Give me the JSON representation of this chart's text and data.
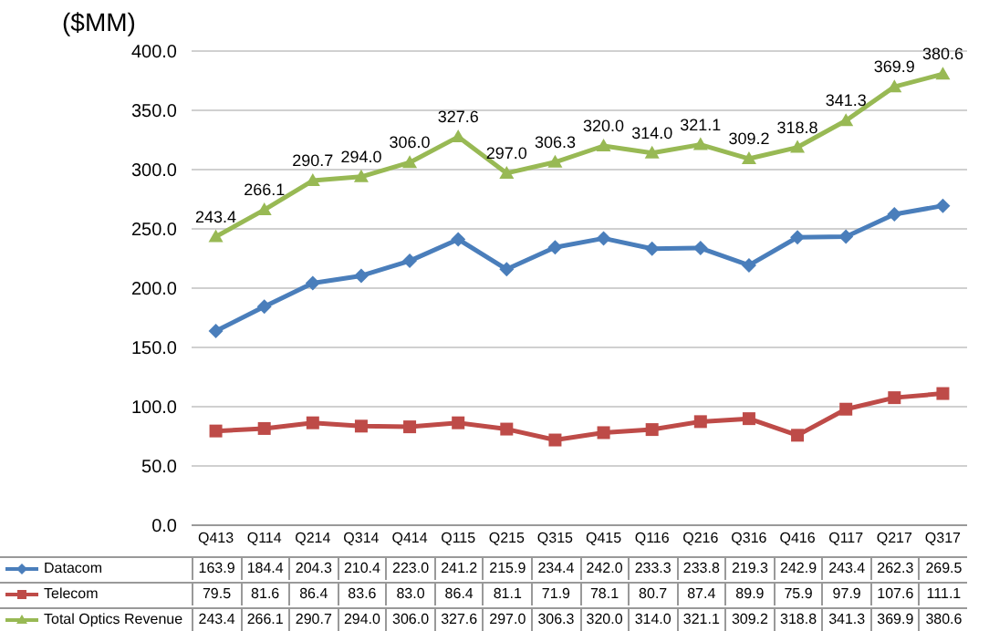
{
  "chart_data": {
    "type": "line",
    "ylabel": "($MM)",
    "categories": [
      "Q413",
      "Q114",
      "Q214",
      "Q314",
      "Q414",
      "Q115",
      "Q215",
      "Q315",
      "Q415",
      "Q116",
      "Q216",
      "Q316",
      "Q416",
      "Q117",
      "Q217",
      "Q317"
    ],
    "series": [
      {
        "name": "Datacom",
        "color": "#4a7ebb",
        "marker": "diamond",
        "values": [
          163.9,
          184.4,
          204.3,
          210.4,
          223.0,
          241.2,
          215.9,
          234.4,
          242.0,
          233.3,
          233.8,
          219.3,
          242.9,
          243.4,
          262.3,
          269.5
        ],
        "value_labels": [
          "163.9",
          "184.4",
          "204.3",
          "210.4",
          "223.0",
          "241.2",
          "215.9",
          "234.4",
          "242.0",
          "233.3",
          "233.8",
          "219.3",
          "242.9",
          "243.4",
          "262.3",
          "269.5"
        ]
      },
      {
        "name": "Telecom",
        "color": "#be4b48",
        "marker": "square",
        "values": [
          79.5,
          81.6,
          86.4,
          83.6,
          83.0,
          86.4,
          81.1,
          71.9,
          78.1,
          80.7,
          87.4,
          89.9,
          75.9,
          97.9,
          107.6,
          111.1
        ],
        "value_labels": [
          "79.5",
          "81.6",
          "86.4",
          "83.6",
          "83.0",
          "86.4",
          "81.1",
          "71.9",
          "78.1",
          "80.7",
          "87.4",
          "89.9",
          "75.9",
          "97.9",
          "107.6",
          "111.1"
        ]
      },
      {
        "name": "Total Optics Revenue",
        "color": "#98b954",
        "marker": "triangle",
        "values": [
          243.4,
          266.1,
          290.7,
          294.0,
          306.0,
          327.6,
          297.0,
          306.3,
          320.0,
          314.0,
          321.1,
          309.2,
          318.8,
          341.3,
          369.9,
          380.6
        ],
        "value_labels": [
          "243.4",
          "266.1",
          "290.7",
          "294.0",
          "306.0",
          "327.6",
          "297.0",
          "306.3",
          "320.0",
          "314.0",
          "321.1",
          "309.2",
          "318.8",
          "341.3",
          "369.9",
          "380.6"
        ]
      }
    ],
    "ylim": [
      0,
      400
    ],
    "yticks": [
      {
        "value": 0,
        "label": "0.0"
      },
      {
        "value": 50,
        "label": "50.0"
      },
      {
        "value": 100,
        "label": "100.0"
      },
      {
        "value": 150,
        "label": "150.0"
      },
      {
        "value": 200,
        "label": "200.0"
      },
      {
        "value": 250,
        "label": "250.0"
      },
      {
        "value": 300,
        "label": "300.0"
      },
      {
        "value": 350,
        "label": "350.0"
      },
      {
        "value": 400,
        "label": "400.0"
      }
    ],
    "grid": "y",
    "legend": "bottom",
    "line_style": "solid"
  }
}
